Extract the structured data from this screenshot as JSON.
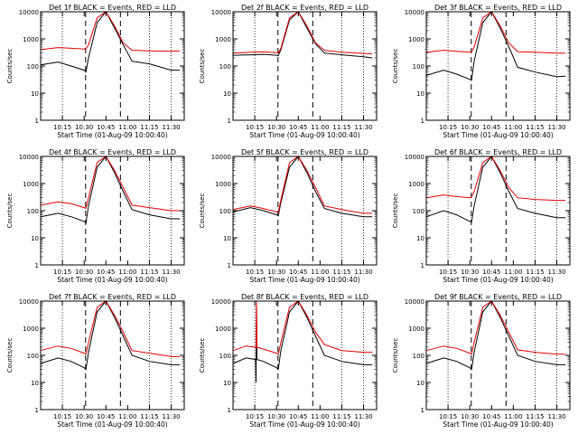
{
  "figure": {
    "background": "#ffffff",
    "axis_color": "#000000",
    "events_color": "#000000",
    "lld_color": "#e00000"
  },
  "chart_data": [
    {
      "type": "line",
      "title": "Det 1f BLACK = Events, RED = LLD",
      "xlabel": "Start Time (01-Aug-09 10:00:40)",
      "ylabel": "Counts/sec",
      "xlim": [
        10.0,
        11.65
      ],
      "ylim": [
        1,
        10000
      ],
      "yscale": "log",
      "x_ticks": [
        "10:15",
        "10:30",
        "10:45",
        "11:00",
        "11:15",
        "11:30"
      ],
      "y_ticks": [
        "1",
        "10",
        "100",
        "1000",
        "10000"
      ],
      "dotted_x": [
        "10:15",
        "11:15",
        "11:30"
      ],
      "dashed_x": [
        "10:31",
        "10:55"
      ],
      "x": [
        10.0,
        10.2,
        10.35,
        10.5,
        10.52,
        10.55,
        10.65,
        10.75,
        10.85,
        10.95,
        11.05,
        11.25,
        11.5,
        11.6
      ],
      "series": [
        {
          "name": "Events",
          "values": [
            110,
            140,
            100,
            70,
            60,
            200,
            4000,
            10000,
            2500,
            600,
            150,
            120,
            70,
            70
          ]
        },
        {
          "name": "LLD",
          "values": [
            400,
            480,
            450,
            420,
            430,
            600,
            6000,
            10000,
            3000,
            700,
            380,
            360,
            350,
            360
          ]
        }
      ]
    },
    {
      "type": "line",
      "title": "Det 2f BLACK = Events, RED = LLD",
      "xlabel": "Start Time (01-Aug-09 10:00:40)",
      "ylabel": "Counts/sec",
      "xlim": [
        10.0,
        11.65
      ],
      "ylim": [
        1,
        10000
      ],
      "yscale": "log",
      "x_ticks": [
        "10:15",
        "10:30",
        "10:45",
        "11:00",
        "11:15",
        "11:30"
      ],
      "y_ticks": [
        "1",
        "10",
        "100",
        "1000",
        "10000"
      ],
      "dotted_x": [
        "10:15",
        "11:15",
        "11:30"
      ],
      "dashed_x": [
        "10:31",
        "10:55"
      ],
      "x": [
        10.0,
        10.2,
        10.35,
        10.5,
        10.52,
        10.55,
        10.65,
        10.75,
        10.85,
        10.95,
        11.05,
        11.25,
        11.5,
        11.6
      ],
      "series": [
        {
          "name": "Events",
          "values": [
            250,
            260,
            270,
            250,
            240,
            400,
            5000,
            10000,
            2500,
            650,
            300,
            260,
            220,
            200
          ]
        },
        {
          "name": "LLD",
          "values": [
            300,
            320,
            330,
            310,
            300,
            450,
            6000,
            10000,
            3000,
            700,
            380,
            320,
            290,
            280
          ]
        }
      ]
    },
    {
      "type": "line",
      "title": "Det 3f BLACK = Events, RED = LLD",
      "xlabel": "Start Time (01-Aug-09 10:00:40)",
      "ylabel": "Counts/sec",
      "xlim": [
        10.0,
        11.65
      ],
      "ylim": [
        1,
        10000
      ],
      "yscale": "log",
      "x_ticks": [
        "10:15",
        "10:30",
        "10:45",
        "11:00",
        "11:15",
        "11:30"
      ],
      "y_ticks": [
        "1",
        "10",
        "100",
        "1000",
        "10000"
      ],
      "dotted_x": [
        "10:15",
        "11:15",
        "11:30"
      ],
      "dashed_x": [
        "10:31",
        "10:55"
      ],
      "x": [
        10.0,
        10.2,
        10.35,
        10.5,
        10.52,
        10.55,
        10.65,
        10.75,
        10.85,
        10.95,
        11.05,
        11.25,
        11.5,
        11.6
      ],
      "series": [
        {
          "name": "Events",
          "values": [
            45,
            70,
            50,
            32,
            30,
            150,
            4000,
            10000,
            2500,
            500,
            90,
            60,
            40,
            42
          ]
        },
        {
          "name": "LLD",
          "values": [
            320,
            380,
            350,
            320,
            330,
            500,
            6000,
            10000,
            3000,
            700,
            340,
            320,
            300,
            300
          ]
        }
      ]
    },
    {
      "type": "line",
      "title": "Det 4f BLACK = Events, RED = LLD",
      "xlabel": "Start Time (01-Aug-09 10:00:40)",
      "ylabel": "Counts/sec",
      "xlim": [
        10.0,
        11.65
      ],
      "ylim": [
        1,
        10000
      ],
      "yscale": "log",
      "x_ticks": [
        "10:15",
        "10:30",
        "10:45",
        "11:00",
        "11:15",
        "11:30"
      ],
      "y_ticks": [
        "1",
        "10",
        "100",
        "1000",
        "10000"
      ],
      "dotted_x": [
        "10:15",
        "11:15",
        "11:30"
      ],
      "dashed_x": [
        "10:31",
        "10:55"
      ],
      "x": [
        10.0,
        10.2,
        10.35,
        10.5,
        10.52,
        10.55,
        10.65,
        10.75,
        10.85,
        10.95,
        11.05,
        11.25,
        11.5,
        11.6
      ],
      "series": [
        {
          "name": "Events",
          "values": [
            60,
            80,
            60,
            40,
            35,
            150,
            4000,
            10000,
            2500,
            500,
            110,
            70,
            50,
            50
          ]
        },
        {
          "name": "LLD",
          "values": [
            160,
            210,
            180,
            130,
            120,
            300,
            6000,
            10000,
            3000,
            700,
            160,
            130,
            100,
            100
          ]
        }
      ]
    },
    {
      "type": "line",
      "title": "Det 5f BLACK = Events, RED = LLD",
      "xlabel": "Start Time (01-Aug-09 10:00:40)",
      "ylabel": "Counts/sec",
      "xlim": [
        10.0,
        11.65
      ],
      "ylim": [
        1,
        10000
      ],
      "yscale": "log",
      "x_ticks": [
        "10:15",
        "10:30",
        "10:45",
        "11:00",
        "11:15",
        "11:30"
      ],
      "y_ticks": [
        "1",
        "10",
        "100",
        "1000",
        "10000"
      ],
      "dotted_x": [
        "10:15",
        "11:15",
        "11:30"
      ],
      "dashed_x": [
        "10:31",
        "10:55"
      ],
      "x": [
        10.0,
        10.2,
        10.35,
        10.5,
        10.52,
        10.55,
        10.65,
        10.75,
        10.85,
        10.95,
        11.05,
        11.25,
        11.5,
        11.6
      ],
      "series": [
        {
          "name": "Events",
          "values": [
            90,
            130,
            100,
            70,
            65,
            200,
            4000,
            10000,
            2500,
            500,
            120,
            80,
            60,
            60
          ]
        },
        {
          "name": "LLD",
          "values": [
            110,
            150,
            120,
            90,
            85,
            250,
            6000,
            10000,
            3000,
            700,
            150,
            110,
            80,
            80
          ]
        }
      ]
    },
    {
      "type": "line",
      "title": "Det 6f BLACK = Events, RED = LLD",
      "xlabel": "Start Time (01-Aug-09 10:00:40)",
      "ylabel": "Counts/sec",
      "xlim": [
        10.0,
        11.65
      ],
      "ylim": [
        1,
        10000
      ],
      "yscale": "log",
      "x_ticks": [
        "10:15",
        "10:30",
        "10:45",
        "11:00",
        "11:15",
        "11:30"
      ],
      "y_ticks": [
        "1",
        "10",
        "100",
        "1000",
        "10000"
      ],
      "dotted_x": [
        "10:15",
        "11:15",
        "11:30"
      ],
      "dashed_x": [
        "10:31",
        "10:55"
      ],
      "x": [
        10.0,
        10.2,
        10.35,
        10.5,
        10.52,
        10.55,
        10.65,
        10.75,
        10.85,
        10.95,
        11.05,
        11.25,
        11.5,
        11.6
      ],
      "series": [
        {
          "name": "Events",
          "values": [
            60,
            100,
            70,
            40,
            38,
            150,
            4000,
            10000,
            2500,
            500,
            120,
            80,
            55,
            55
          ]
        },
        {
          "name": "LLD",
          "values": [
            300,
            380,
            330,
            300,
            320,
            500,
            6000,
            10000,
            3000,
            700,
            300,
            260,
            240,
            240
          ]
        }
      ]
    },
    {
      "type": "line",
      "title": "Det 7f BLACK = Events, RED = LLD",
      "xlabel": "Start Time (01-Aug-09 10:00:40)",
      "ylabel": "Counts/sec",
      "xlim": [
        10.0,
        11.65
      ],
      "ylim": [
        1,
        10000
      ],
      "yscale": "log",
      "x_ticks": [
        "10:15",
        "10:30",
        "10:45",
        "11:00",
        "11:15",
        "11:30"
      ],
      "y_ticks": [
        "1",
        "10",
        "100",
        "1000",
        "10000"
      ],
      "dotted_x": [
        "10:15",
        "11:15",
        "11:30"
      ],
      "dashed_x": [
        "10:31",
        "10:55"
      ],
      "x": [
        10.0,
        10.2,
        10.35,
        10.5,
        10.52,
        10.55,
        10.65,
        10.75,
        10.85,
        10.95,
        11.05,
        11.25,
        11.5,
        11.6
      ],
      "series": [
        {
          "name": "Events",
          "values": [
            50,
            80,
            60,
            35,
            30,
            130,
            4000,
            10000,
            2500,
            500,
            100,
            60,
            45,
            45
          ]
        },
        {
          "name": "LLD",
          "values": [
            150,
            220,
            180,
            120,
            110,
            300,
            6000,
            10000,
            3000,
            700,
            150,
            120,
            90,
            90
          ]
        }
      ]
    },
    {
      "type": "line",
      "title": "Det 8f BLACK = Events, RED = LLD",
      "xlabel": "Start Time (01-Aug-09 10:00:40)",
      "ylabel": "Counts/sec",
      "xlim": [
        10.0,
        11.65
      ],
      "ylim": [
        1,
        10000
      ],
      "yscale": "log",
      "x_ticks": [
        "10:15",
        "10:30",
        "10:45",
        "11:00",
        "11:15",
        "11:30"
      ],
      "y_ticks": [
        "1",
        "10",
        "100",
        "1000",
        "10000"
      ],
      "dotted_x": [
        "10:15",
        "11:15",
        "11:30"
      ],
      "dashed_x": [
        "10:31",
        "10:55"
      ],
      "x": [
        10.0,
        10.15,
        10.26,
        10.265,
        10.27,
        10.275,
        10.35,
        10.5,
        10.52,
        10.55,
        10.65,
        10.75,
        10.85,
        10.95,
        11.05,
        11.25,
        11.5,
        11.6
      ],
      "series": [
        {
          "name": "Events",
          "values": [
            50,
            80,
            70,
            10,
            10000,
            70,
            60,
            35,
            30,
            150,
            4000,
            10000,
            2500,
            500,
            100,
            60,
            45,
            45
          ]
        },
        {
          "name": "LLD",
          "values": [
            150,
            220,
            200,
            180,
            10000,
            200,
            170,
            120,
            110,
            300,
            6000,
            10000,
            3000,
            700,
            250,
            150,
            130,
            130
          ]
        }
      ]
    },
    {
      "type": "line",
      "title": "Det 9f BLACK = Events, RED = LLD",
      "xlabel": "Start Time (01-Aug-09 10:00:40)",
      "ylabel": "Counts/sec",
      "xlim": [
        10.0,
        11.65
      ],
      "ylim": [
        1,
        10000
      ],
      "yscale": "log",
      "x_ticks": [
        "10:15",
        "10:30",
        "10:45",
        "11:00",
        "11:15",
        "11:30"
      ],
      "y_ticks": [
        "1",
        "10",
        "100",
        "1000",
        "10000"
      ],
      "dotted_x": [
        "10:15",
        "11:15",
        "11:30"
      ],
      "dashed_x": [
        "10:31",
        "10:55"
      ],
      "x": [
        10.0,
        10.2,
        10.35,
        10.5,
        10.52,
        10.55,
        10.65,
        10.75,
        10.85,
        10.95,
        11.05,
        11.25,
        11.5,
        11.6
      ],
      "series": [
        {
          "name": "Events",
          "values": [
            50,
            80,
            60,
            35,
            30,
            130,
            4000,
            10000,
            2500,
            500,
            100,
            60,
            45,
            45
          ]
        },
        {
          "name": "LLD",
          "values": [
            150,
            220,
            180,
            120,
            110,
            300,
            6000,
            10000,
            3000,
            700,
            160,
            130,
            110,
            110
          ]
        }
      ]
    }
  ]
}
